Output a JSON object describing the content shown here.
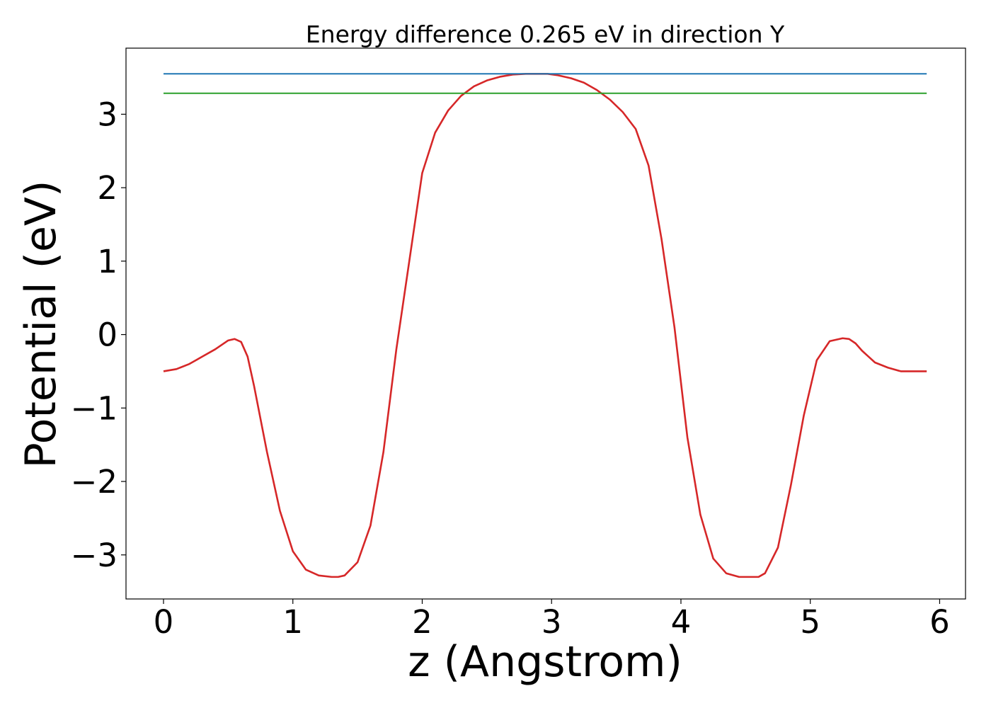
{
  "chart_data": {
    "type": "line",
    "title": "Energy difference 0.265 eV in direction Y",
    "xlabel": "z (Angstrom)",
    "ylabel": "Potential (eV)",
    "xlim": [
      -0.29,
      6.2
    ],
    "ylim": [
      -3.6,
      3.9
    ],
    "xticks": [
      0,
      1,
      2,
      3,
      4,
      5,
      6
    ],
    "yticks": [
      -3,
      -2,
      -1,
      0,
      1,
      2,
      3
    ],
    "xtick_labels": [
      "0",
      "1",
      "2",
      "3",
      "4",
      "5",
      "6"
    ],
    "ytick_labels": [
      "−3",
      "−2",
      "−1",
      "0",
      "1",
      "2",
      "3"
    ],
    "grid": false,
    "legend": "none",
    "series": [
      {
        "color": "#d62728",
        "kind": "line",
        "x": [
          0,
          0.1,
          0.2,
          0.3,
          0.4,
          0.5,
          0.55,
          0.6,
          0.65,
          0.7,
          0.8,
          0.9,
          1.0,
          1.1,
          1.2,
          1.3,
          1.35,
          1.4,
          1.5,
          1.6,
          1.7,
          1.8,
          1.9,
          2.0,
          2.1,
          2.2,
          2.3,
          2.4,
          2.5,
          2.6,
          2.7,
          2.8,
          2.9,
          2.97,
          3.05,
          3.15,
          3.25,
          3.35,
          3.45,
          3.55,
          3.65,
          3.75,
          3.85,
          3.95,
          4.05,
          4.15,
          4.25,
          4.35,
          4.45,
          4.55,
          4.6,
          4.65,
          4.75,
          4.85,
          4.95,
          5.05,
          5.15,
          5.25,
          5.3,
          5.35,
          5.4,
          5.45,
          5.5,
          5.6,
          5.7,
          5.8,
          5.9
        ],
        "y": [
          -0.5,
          -0.47,
          -0.4,
          -0.3,
          -0.2,
          -0.08,
          -0.06,
          -0.1,
          -0.3,
          -0.7,
          -1.6,
          -2.4,
          -2.95,
          -3.2,
          -3.28,
          -3.3,
          -3.3,
          -3.28,
          -3.1,
          -2.6,
          -1.6,
          -0.2,
          1.0,
          2.2,
          2.75,
          3.05,
          3.25,
          3.38,
          3.46,
          3.51,
          3.54,
          3.55,
          3.55,
          3.55,
          3.53,
          3.49,
          3.43,
          3.33,
          3.2,
          3.03,
          2.8,
          2.3,
          1.3,
          0.1,
          -1.4,
          -2.45,
          -3.05,
          -3.25,
          -3.3,
          -3.3,
          -3.3,
          -3.25,
          -2.9,
          -2.05,
          -1.1,
          -0.35,
          -0.09,
          -0.05,
          -0.06,
          -0.12,
          -0.22,
          -0.3,
          -0.38,
          -0.45,
          -0.5,
          -0.5,
          -0.5
        ]
      },
      {
        "color": "#1f77b4",
        "kind": "hline",
        "x": [
          0,
          5.9
        ],
        "y": [
          3.55,
          3.55
        ]
      },
      {
        "color": "#2ca02c",
        "kind": "hline",
        "x": [
          0,
          5.9
        ],
        "y": [
          3.285,
          3.285
        ]
      }
    ]
  }
}
